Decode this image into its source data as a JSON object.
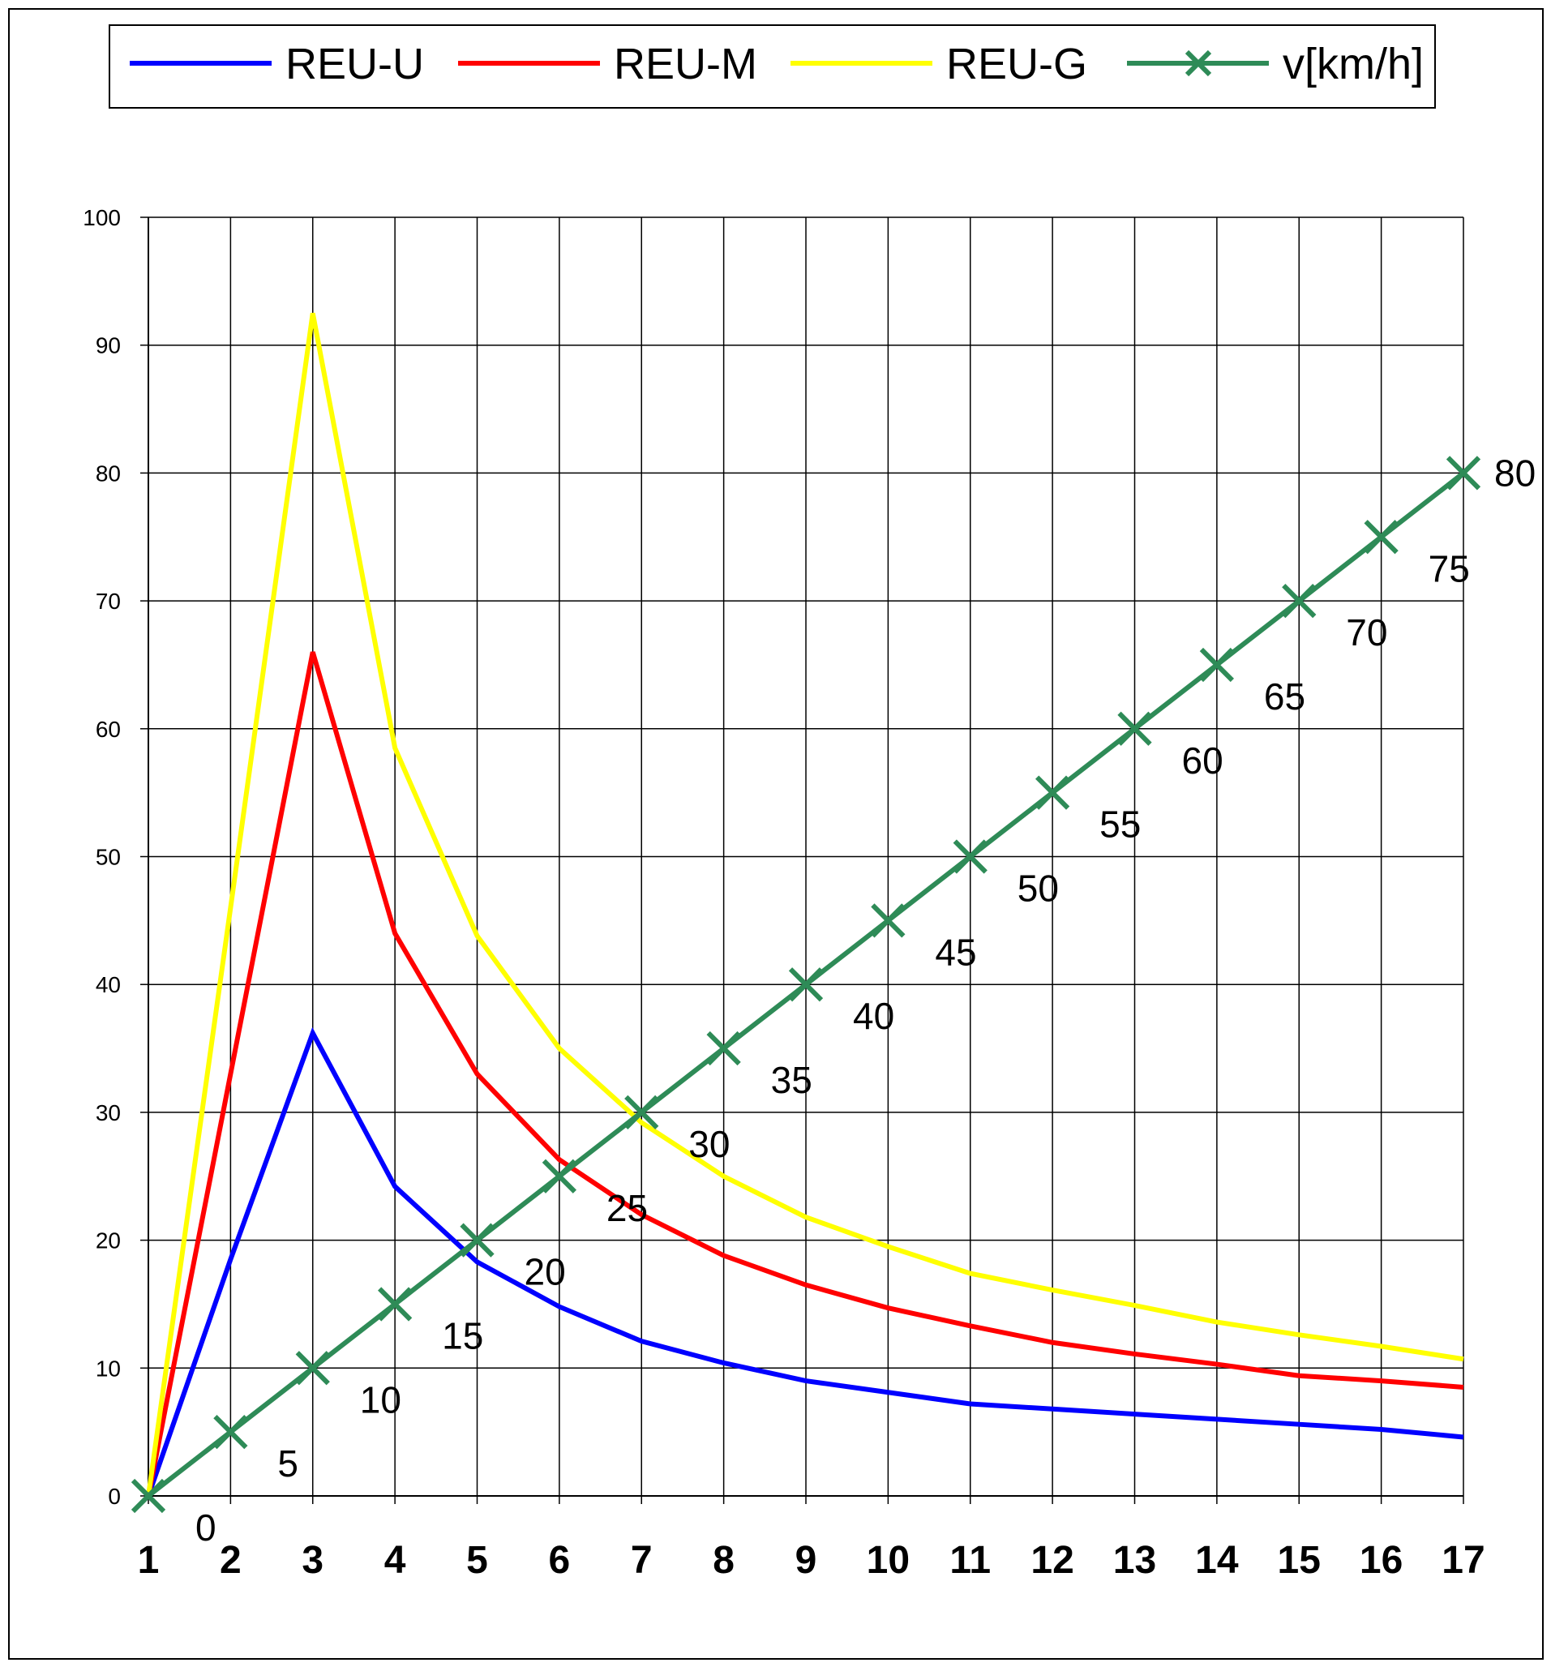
{
  "chart_data": {
    "type": "line",
    "title": "",
    "xlabel": "",
    "ylabel": "",
    "categories": [
      "1",
      "2",
      "3",
      "4",
      "5",
      "6",
      "7",
      "8",
      "9",
      "10",
      "11",
      "12",
      "13",
      "14",
      "15",
      "16",
      "17"
    ],
    "yticks": [
      "0",
      "10",
      "20",
      "30",
      "40",
      "50",
      "60",
      "70",
      "80",
      "90",
      "100"
    ],
    "ylim": [
      0,
      100
    ],
    "grid": true,
    "legend_position": "top",
    "series": [
      {
        "name": "REU-U",
        "color": "#0000ff",
        "markers": false,
        "values": [
          0,
          18.5,
          36.2,
          24.2,
          18.3,
          14.8,
          12.1,
          10.4,
          9.0,
          8.1,
          7.2,
          6.8,
          6.4,
          6.0,
          5.6,
          5.2,
          4.6
        ]
      },
      {
        "name": "REU-M",
        "color": "#ff0000",
        "markers": false,
        "values": [
          0,
          33.0,
          66.0,
          44.0,
          33.0,
          26.3,
          22.0,
          18.8,
          16.5,
          14.7,
          13.3,
          12.0,
          11.1,
          10.3,
          9.4,
          9.0,
          8.5
        ]
      },
      {
        "name": "REU-G",
        "color": "#ffff00",
        "markers": false,
        "values": [
          0,
          46.0,
          92.5,
          58.5,
          43.8,
          35.0,
          29.2,
          25.0,
          21.8,
          19.5,
          17.4,
          16.1,
          14.9,
          13.6,
          12.6,
          11.7,
          10.7
        ]
      },
      {
        "name": "v[km/h]",
        "color": "#2e8b57",
        "markers": true,
        "values": [
          0,
          5,
          10,
          15,
          20,
          25,
          30,
          35,
          40,
          45,
          50,
          55,
          60,
          65,
          70,
          75,
          80
        ],
        "labels": [
          "0",
          "5",
          "10",
          "15",
          "20",
          "25",
          "30",
          "35",
          "40",
          "45",
          "50",
          "55",
          "60",
          "65",
          "70",
          "75",
          "80"
        ]
      }
    ]
  }
}
